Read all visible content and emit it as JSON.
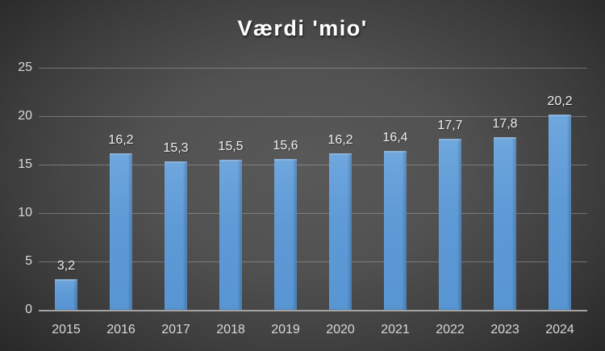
{
  "chart_data": {
    "type": "bar",
    "title": "Værdi 'mio'",
    "categories": [
      "2015",
      "2016",
      "2017",
      "2018",
      "2019",
      "2020",
      "2021",
      "2022",
      "2023",
      "2024"
    ],
    "values": [
      3.2,
      16.2,
      15.3,
      15.5,
      15.6,
      16.2,
      16.4,
      17.7,
      17.8,
      20.2
    ],
    "value_labels": [
      "3,2",
      "16,2",
      "15,3",
      "15,5",
      "15,6",
      "16,2",
      "16,4",
      "17,7",
      "17,8",
      "20,2"
    ],
    "xlabel": "",
    "ylabel": "",
    "ylim": [
      0,
      25
    ],
    "yticks": [
      0,
      5,
      10,
      15,
      20,
      25
    ],
    "grid": "horizontal",
    "legend": "none",
    "colors": {
      "bar": "#5B9BD5",
      "title": "#ffffff",
      "axis_labels": "#d9d9d9",
      "data_labels": "#efefef",
      "gridline": "#8c8c8c",
      "axis_line": "#a3a3a3",
      "background_center": "#595959",
      "background_edge": "#232323"
    }
  }
}
